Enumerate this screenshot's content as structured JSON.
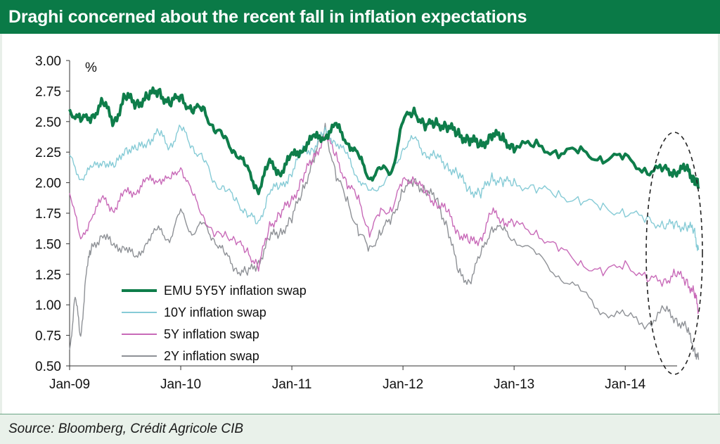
{
  "title": "Draghi concerned about the recent fall in inflation expectations",
  "source": "Source: Bloomberg, Crédit Agricole CIB",
  "colors": {
    "header": "#0a7a47",
    "emu5y5y": "#0e7d4a",
    "y10": "#86cbd6",
    "y5": "#c86ab8",
    "y2": "#8e9196"
  },
  "chart_data": {
    "type": "line",
    "title": "Draghi concerned about the recent fall in inflation expectations",
    "ylabel": "%",
    "xlabel": "",
    "ylim": [
      0.5,
      3.0
    ],
    "xlim": [
      2009.0,
      2014.72
    ],
    "y_ticks": [
      "3.00",
      "2.75",
      "2.50",
      "2.25",
      "2.00",
      "1.75",
      "1.50",
      "1.25",
      "1.00",
      "0.75",
      "0.50"
    ],
    "x_ticks": [
      "Jan-09",
      "Jan-10",
      "Jan-11",
      "Jan-12",
      "Jan-13",
      "Jan-14"
    ],
    "legend_position": "lower-left",
    "annotations": [
      "dashed ellipse highlighting mid-2014 decline"
    ],
    "series": [
      {
        "name": "EMU 5Y5Y inflation swap",
        "x": [
          2009.0,
          2009.1,
          2009.2,
          2009.3,
          2009.4,
          2009.5,
          2009.6,
          2009.7,
          2009.8,
          2009.9,
          2010.0,
          2010.1,
          2010.2,
          2010.3,
          2010.4,
          2010.5,
          2010.6,
          2010.7,
          2010.8,
          2010.9,
          2011.0,
          2011.1,
          2011.2,
          2011.3,
          2011.4,
          2011.5,
          2011.6,
          2011.7,
          2011.8,
          2011.9,
          2012.0,
          2012.1,
          2012.2,
          2012.3,
          2012.4,
          2012.5,
          2012.6,
          2012.7,
          2012.8,
          2012.9,
          2013.0,
          2013.2,
          2013.4,
          2013.6,
          2013.8,
          2014.0,
          2014.2,
          2014.35,
          2014.45,
          2014.55,
          2014.62,
          2014.66
        ],
        "values": [
          2.6,
          2.5,
          2.55,
          2.65,
          2.5,
          2.7,
          2.65,
          2.7,
          2.75,
          2.65,
          2.7,
          2.6,
          2.6,
          2.45,
          2.35,
          2.25,
          2.1,
          1.95,
          2.15,
          2.1,
          2.2,
          2.3,
          2.35,
          2.4,
          2.45,
          2.35,
          2.2,
          2.05,
          2.1,
          2.1,
          2.5,
          2.6,
          2.45,
          2.5,
          2.45,
          2.4,
          2.35,
          2.3,
          2.4,
          2.35,
          2.3,
          2.3,
          2.25,
          2.25,
          2.2,
          2.2,
          2.1,
          2.1,
          2.1,
          2.1,
          2.05,
          1.95
        ]
      },
      {
        "name": "10Y inflation swap",
        "x": [
          2009.0,
          2009.1,
          2009.2,
          2009.3,
          2009.4,
          2009.5,
          2009.6,
          2009.7,
          2009.8,
          2009.9,
          2010.0,
          2010.1,
          2010.2,
          2010.3,
          2010.4,
          2010.5,
          2010.6,
          2010.7,
          2010.8,
          2010.9,
          2011.0,
          2011.1,
          2011.2,
          2011.3,
          2011.4,
          2011.5,
          2011.6,
          2011.7,
          2011.8,
          2011.9,
          2012.0,
          2012.1,
          2012.2,
          2012.3,
          2012.4,
          2012.5,
          2012.6,
          2012.7,
          2012.8,
          2012.9,
          2013.0,
          2013.2,
          2013.4,
          2013.6,
          2013.8,
          2014.0,
          2014.2,
          2014.35,
          2014.45,
          2014.55,
          2014.62,
          2014.66
        ],
        "values": [
          2.2,
          2.05,
          2.1,
          2.2,
          2.1,
          2.3,
          2.25,
          2.35,
          2.4,
          2.3,
          2.45,
          2.3,
          2.2,
          2.0,
          1.95,
          1.85,
          1.75,
          1.65,
          1.95,
          1.95,
          2.1,
          2.25,
          2.3,
          2.4,
          2.35,
          2.2,
          2.05,
          1.9,
          2.0,
          2.05,
          2.3,
          2.35,
          2.25,
          2.2,
          2.15,
          2.05,
          1.95,
          1.9,
          2.05,
          2.0,
          2.0,
          1.95,
          1.9,
          1.85,
          1.8,
          1.75,
          1.7,
          1.65,
          1.65,
          1.65,
          1.6,
          1.45
        ]
      },
      {
        "name": "5Y inflation swap",
        "x": [
          2009.0,
          2009.1,
          2009.2,
          2009.3,
          2009.4,
          2009.5,
          2009.6,
          2009.7,
          2009.8,
          2009.9,
          2010.0,
          2010.1,
          2010.2,
          2010.3,
          2010.4,
          2010.5,
          2010.6,
          2010.7,
          2010.8,
          2010.9,
          2011.0,
          2011.1,
          2011.2,
          2011.3,
          2011.4,
          2011.5,
          2011.6,
          2011.7,
          2011.8,
          2011.9,
          2012.0,
          2012.1,
          2012.2,
          2012.3,
          2012.4,
          2012.5,
          2012.6,
          2012.7,
          2012.8,
          2012.9,
          2013.0,
          2013.2,
          2013.4,
          2013.6,
          2013.8,
          2014.0,
          2014.2,
          2014.35,
          2014.45,
          2014.55,
          2014.62,
          2014.66
        ],
        "values": [
          1.95,
          1.5,
          1.75,
          1.85,
          1.8,
          1.9,
          1.95,
          2.0,
          2.05,
          2.0,
          2.15,
          1.9,
          1.75,
          1.55,
          1.6,
          1.5,
          1.45,
          1.3,
          1.65,
          1.75,
          1.85,
          2.05,
          2.2,
          2.4,
          2.2,
          2.0,
          1.85,
          1.6,
          1.75,
          1.8,
          2.0,
          2.05,
          1.9,
          1.85,
          1.75,
          1.6,
          1.5,
          1.55,
          1.75,
          1.7,
          1.65,
          1.6,
          1.45,
          1.35,
          1.25,
          1.35,
          1.2,
          1.2,
          1.25,
          1.2,
          1.1,
          0.95
        ]
      },
      {
        "name": "2Y inflation swap",
        "x": [
          2009.0,
          2009.05,
          2009.1,
          2009.15,
          2009.2,
          2009.3,
          2009.4,
          2009.5,
          2009.6,
          2009.7,
          2009.8,
          2009.9,
          2010.0,
          2010.1,
          2010.2,
          2010.3,
          2010.4,
          2010.5,
          2010.6,
          2010.7,
          2010.8,
          2010.9,
          2011.0,
          2011.1,
          2011.2,
          2011.3,
          2011.4,
          2011.5,
          2011.6,
          2011.7,
          2011.8,
          2011.9,
          2012.0,
          2012.1,
          2012.2,
          2012.3,
          2012.4,
          2012.5,
          2012.6,
          2012.7,
          2012.8,
          2012.9,
          2013.0,
          2013.2,
          2013.4,
          2013.6,
          2013.8,
          2014.0,
          2014.2,
          2014.35,
          2014.45,
          2014.55,
          2014.62,
          2014.66
        ],
        "values": [
          0.6,
          1.1,
          0.7,
          1.3,
          1.45,
          1.6,
          1.45,
          1.5,
          1.35,
          1.55,
          1.6,
          1.55,
          1.75,
          1.6,
          1.65,
          1.55,
          1.4,
          1.3,
          1.25,
          1.35,
          1.55,
          1.6,
          1.7,
          1.95,
          2.2,
          2.45,
          2.05,
          1.85,
          1.6,
          1.45,
          1.6,
          1.7,
          1.95,
          2.0,
          1.95,
          1.85,
          1.65,
          1.25,
          1.2,
          1.4,
          1.65,
          1.6,
          1.55,
          1.4,
          1.25,
          1.1,
          0.95,
          0.9,
          0.85,
          0.95,
          0.9,
          0.8,
          0.65,
          0.55
        ]
      }
    ]
  }
}
